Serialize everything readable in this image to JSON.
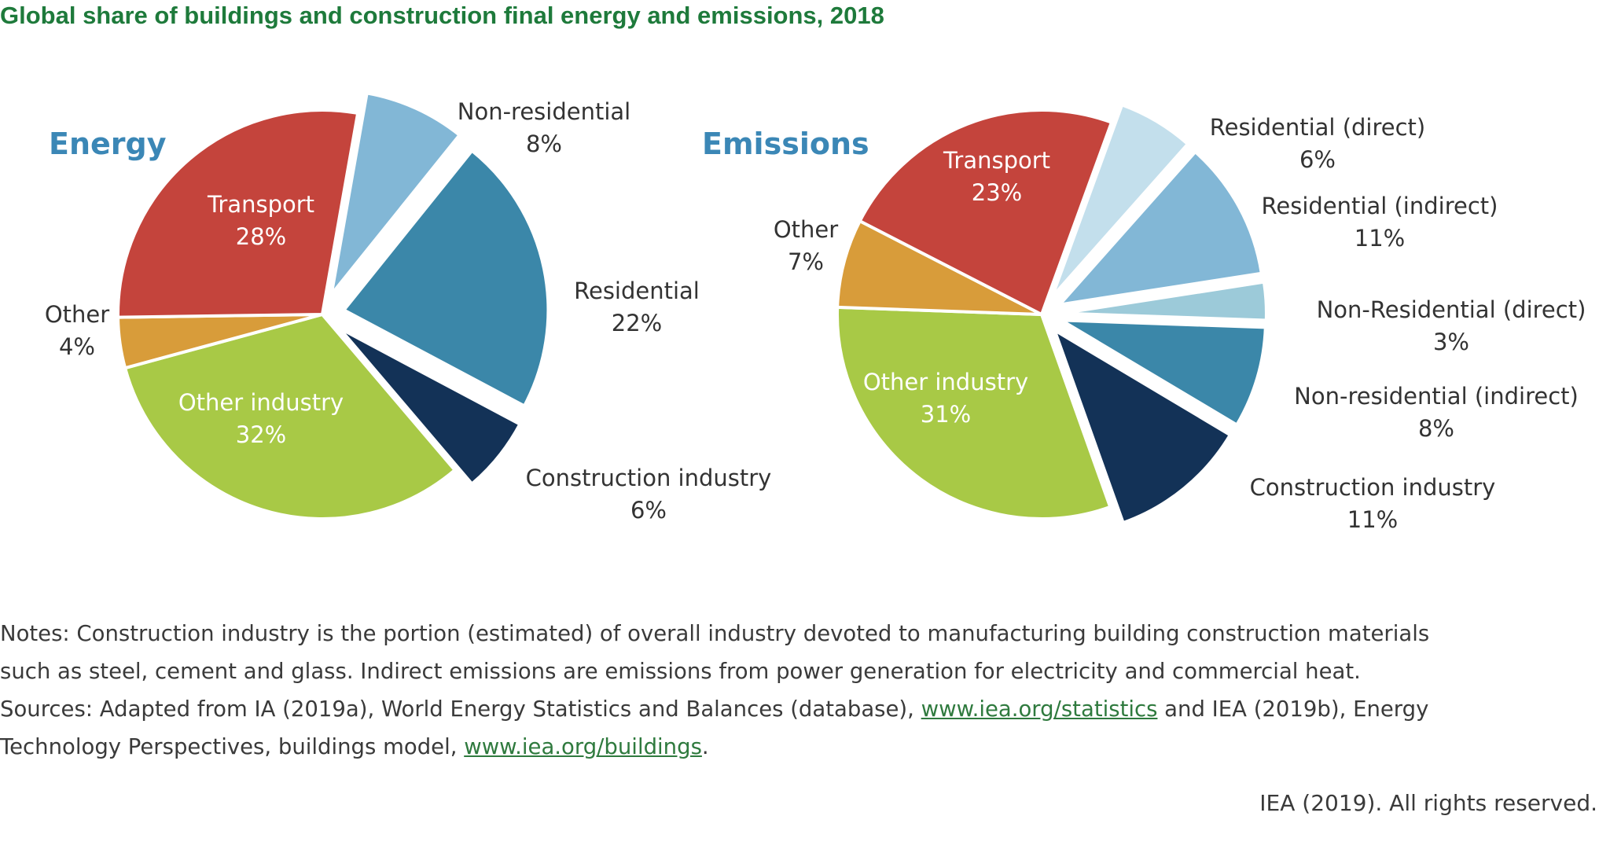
{
  "title": "Global share of buildings and construction final energy and emissions, 2018",
  "chart_data": [
    {
      "type": "pie",
      "title": "Energy",
      "categories": [
        "Non-residential",
        "Residential",
        "Construction industry",
        "Other industry",
        "Other",
        "Transport"
      ],
      "values": [
        8,
        22,
        6,
        32,
        4,
        28
      ],
      "labels": [
        "8%",
        "22%",
        "6%",
        "32%",
        "4%",
        "28%"
      ],
      "exploded": [
        "Non-residential",
        "Residential",
        "Construction industry"
      ],
      "colors": [
        "#82b7d6",
        "#3b87a9",
        "#133257",
        "#a8c946",
        "#d89c3a",
        "#c4443c"
      ]
    },
    {
      "type": "pie",
      "title": "Emissions",
      "categories": [
        "Residential (direct)",
        "Residential (indirect)",
        "Non-Residential (direct)",
        "Non-residential (indirect)",
        "Construction industry",
        "Other industry",
        "Other",
        "Transport"
      ],
      "values": [
        6,
        11,
        3,
        8,
        11,
        31,
        7,
        23
      ],
      "labels": [
        "6%",
        "11%",
        "3%",
        "8%",
        "11%",
        "31%",
        "7%",
        "23%"
      ],
      "exploded": [
        "Residential (direct)",
        "Residential (indirect)",
        "Non-Residential (direct)",
        "Non-residential (indirect)",
        "Construction industry"
      ],
      "colors": [
        "#c3dfec",
        "#82b7d6",
        "#9ccad9",
        "#3b87a9",
        "#133257",
        "#a8c946",
        "#d89c3a",
        "#c4443c"
      ]
    }
  ],
  "notes": {
    "line1": "Notes: Construction industry is the portion (estimated) of overall industry devoted to manufacturing building construction materials",
    "line2": "such as steel, cement and glass. Indirect emissions are emissions from power generation for electricity and commercial heat.",
    "line3_prefix": "Sources: Adapted from IA (2019a), World Energy Statistics and Balances (database), ",
    "link1": "www.iea.org/statistics",
    "line3_suffix": " and IEA (2019b), Energy",
    "line4_prefix": "Technology Perspectives, buildings model, ",
    "link2": "www.iea.org/buildings",
    "line4_suffix": "."
  },
  "copyright": "IEA (2019). All rights reserved."
}
